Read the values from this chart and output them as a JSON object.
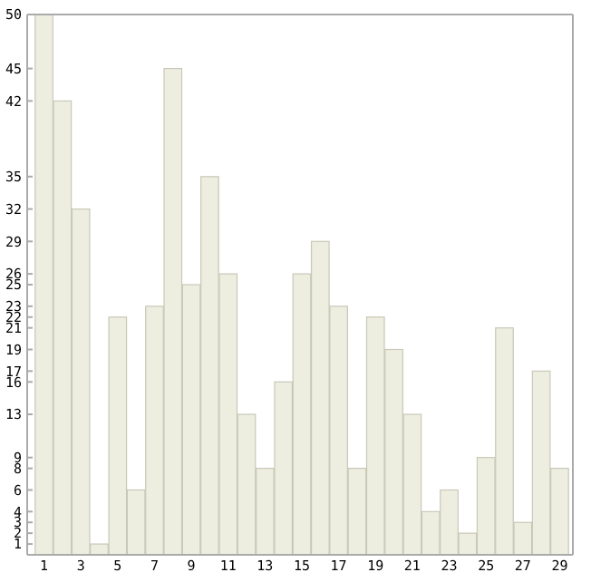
{
  "chart_data": {
    "type": "bar",
    "categories": [
      "1",
      null,
      "3",
      null,
      "5",
      null,
      "7",
      null,
      "9",
      null,
      "11",
      null,
      "13",
      null,
      "15",
      null,
      "17",
      null,
      "19",
      null,
      "21",
      null,
      "23",
      null,
      "25",
      null,
      "27",
      null,
      "29"
    ],
    "values": [
      50,
      42,
      32,
      1,
      22,
      6,
      23,
      45,
      25,
      35,
      26,
      13,
      8,
      16,
      26,
      29,
      23,
      8,
      22,
      19,
      13,
      4,
      6,
      2,
      9,
      21,
      3,
      17,
      8
    ],
    "color": "#eeeee0",
    "ylim": [
      0,
      50
    ],
    "yticks": [
      1,
      2,
      3,
      4,
      6,
      8,
      9,
      13,
      16,
      17,
      19,
      21,
      22,
      23,
      25,
      26,
      29,
      32,
      35,
      42,
      45,
      50
    ],
    "grid": false
  }
}
